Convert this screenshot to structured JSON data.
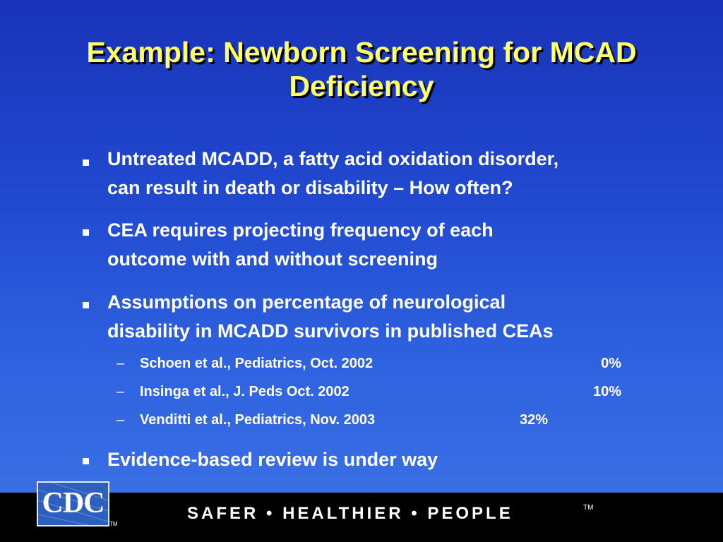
{
  "slide": {
    "title_line1": "Example: Newborn Screening for MCAD",
    "title_line2": "Deficiency",
    "bullets": [
      {
        "line1": "Untreated MCADD, a fatty acid oxidation disorder,",
        "line2": "can result in death or disability – How often?"
      },
      {
        "line1": "CEA requires projecting frequency of each",
        "line2": "outcome with and without screening"
      },
      {
        "line1": "Assumptions on percentage of neurological",
        "line2": "disability in MCADD survivors in published CEAs"
      },
      {
        "line1": "Evidence-based review is under way"
      }
    ],
    "sub_items": [
      {
        "dash": "–",
        "citation": "Schoen et al., Pediatrics, Oct. 2002",
        "value": "0%"
      },
      {
        "dash": "–",
        "citation": "Insinga et al., J. Peds Oct. 2002",
        "value": "10%"
      },
      {
        "dash": "–",
        "citation": "Venditti et al., Pediatrics, Nov. 2003",
        "value": "32%"
      }
    ]
  },
  "footer": {
    "logo_text": "CDC",
    "logo_tm": "TM",
    "tagline": "SAFER • HEALTHIER • PEOPLE",
    "tagline_tm": "TM"
  },
  "colors": {
    "background_top": "#1833b8",
    "background_bottom": "#3a6ee4",
    "title": "#ffff66",
    "text": "#ffffff",
    "footer": "#000000"
  }
}
